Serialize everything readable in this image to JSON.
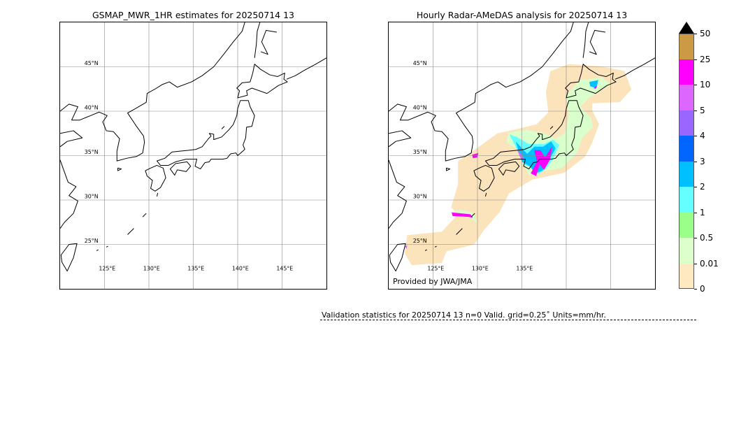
{
  "left_map": {
    "title": "GSMAP_MWR_1HR estimates for 20250714 13",
    "lat_labels": [
      "45°N",
      "40°N",
      "35°N",
      "30°N",
      "25°N"
    ],
    "lon_labels": [
      "125°E",
      "130°E",
      "135°E",
      "140°E",
      "145°E"
    ]
  },
  "right_map": {
    "title": "Hourly Radar-AMeDAS analysis for 20250714 13",
    "lat_labels": [
      "45°N",
      "40°N",
      "35°N",
      "30°N",
      "25°N"
    ],
    "lon_labels": [
      "125°E",
      "130°E",
      "135°E"
    ],
    "credit": "Provided by JWA/JMA"
  },
  "colorbar": {
    "labels": [
      "50",
      "25",
      "10",
      "5",
      "4",
      "3",
      "2",
      "1",
      "0.5",
      "0.01",
      "0"
    ],
    "colors": [
      "#cc9944",
      "#ff00ff",
      "#dd66ff",
      "#9966ff",
      "#0066ff",
      "#00c0ff",
      "#66ffff",
      "#99ff88",
      "#ddffcc",
      "#ffe9c0"
    ],
    "extend_color": "#000000"
  },
  "validation": {
    "text": "Validation statistics for 20250714 13  n=0 Valid. grid=0.25˚ Units=mm/hr."
  }
}
